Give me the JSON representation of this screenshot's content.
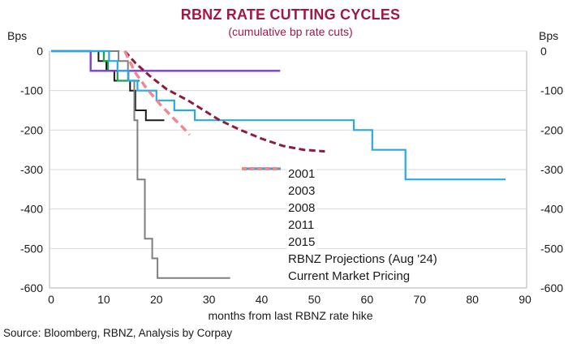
{
  "chart_data": {
    "type": "line",
    "title": "RBNZ RATE CUTTING CYCLES",
    "subtitle": "(cumulative bp rate cuts)",
    "title_color": "#A31748",
    "unit_label_left": "Bps",
    "unit_label_right": "Bps",
    "xlabel": "months from last RBNZ rate hike",
    "source": "Source: Bloomberg, RBNZ, Analysis by Corpay",
    "xlim": [
      0,
      90
    ],
    "ylim": [
      -600,
      0
    ],
    "x_ticks": [
      0,
      10,
      20,
      30,
      40,
      50,
      60,
      70,
      80,
      90
    ],
    "y_ticks": [
      0,
      -100,
      -200,
      -300,
      -400,
      -500,
      -600
    ],
    "grid": "horizontal",
    "legend_position": "inside-center-right",
    "grid_color": "#D9D9D9",
    "spine_color": "#BFBFBF",
    "series": [
      {
        "name": "2001",
        "color": "#1A1A1A",
        "width": 2,
        "dash": null,
        "points": [
          [
            0,
            0
          ],
          [
            9,
            0
          ],
          [
            9,
            -25
          ],
          [
            10.5,
            -25
          ],
          [
            10.5,
            -50
          ],
          [
            12,
            -50
          ],
          [
            12,
            -75
          ],
          [
            15,
            -75
          ],
          [
            15,
            -100
          ],
          [
            16,
            -100
          ],
          [
            16,
            -150
          ],
          [
            18,
            -150
          ],
          [
            18,
            -175
          ],
          [
            21.5,
            -175
          ]
        ]
      },
      {
        "name": "2003",
        "color": "#1BA64E",
        "width": 2.2,
        "dash": null,
        "points": [
          [
            0,
            0
          ],
          [
            10,
            0
          ],
          [
            10,
            -25
          ],
          [
            10.8,
            -25
          ],
          [
            10.8,
            -50
          ],
          [
            12.6,
            -50
          ],
          [
            12.6,
            -75
          ],
          [
            16.8,
            -75
          ]
        ]
      },
      {
        "name": "2008",
        "color": "#7F7F7F",
        "width": 2,
        "dash": null,
        "points": [
          [
            0,
            0
          ],
          [
            12.8,
            0
          ],
          [
            12.8,
            -25
          ],
          [
            14.6,
            -25
          ],
          [
            14.6,
            -75
          ],
          [
            15.8,
            -75
          ],
          [
            15.8,
            -175
          ],
          [
            16.4,
            -175
          ],
          [
            16.4,
            -325
          ],
          [
            17.8,
            -325
          ],
          [
            17.8,
            -475
          ],
          [
            19.2,
            -475
          ],
          [
            19.2,
            -525
          ],
          [
            20.2,
            -525
          ],
          [
            20.2,
            -575
          ],
          [
            34,
            -575
          ]
        ]
      },
      {
        "name": "2011",
        "color": "#7D42C3",
        "width": 2.4,
        "dash": null,
        "points": [
          [
            0,
            0
          ],
          [
            7.5,
            0
          ],
          [
            7.5,
            -50
          ],
          [
            43.5,
            -50
          ]
        ]
      },
      {
        "name": "2015",
        "color": "#29A9E2",
        "width": 2.2,
        "dash": null,
        "points": [
          [
            0,
            0
          ],
          [
            11,
            0
          ],
          [
            11,
            -25
          ],
          [
            12.6,
            -25
          ],
          [
            12.6,
            -50
          ],
          [
            14.7,
            -50
          ],
          [
            14.7,
            -75
          ],
          [
            16.4,
            -75
          ],
          [
            16.4,
            -100
          ],
          [
            20,
            -100
          ],
          [
            20,
            -125
          ],
          [
            23.4,
            -125
          ],
          [
            23.4,
            -150
          ],
          [
            27.3,
            -150
          ],
          [
            27.3,
            -175
          ],
          [
            57.5,
            -175
          ],
          [
            57.5,
            -200
          ],
          [
            61,
            -200
          ],
          [
            61,
            -250
          ],
          [
            67.3,
            -250
          ],
          [
            67.3,
            -325
          ],
          [
            86.3,
            -325
          ]
        ]
      },
      {
        "name": "RBNZ Projections (Aug '24)",
        "color": "#8E1C3D",
        "width": 3,
        "dash": "8 4.5",
        "points": [
          [
            14,
            0
          ],
          [
            16,
            -30
          ],
          [
            19,
            -66
          ],
          [
            22,
            -97
          ],
          [
            26,
            -125
          ],
          [
            29,
            -150
          ],
          [
            32,
            -175
          ],
          [
            36,
            -200
          ],
          [
            40,
            -222
          ],
          [
            44,
            -240
          ],
          [
            48,
            -250
          ],
          [
            52,
            -254
          ]
        ]
      },
      {
        "name": "Current Market Pricing",
        "color": "#F4858F",
        "width": 3.4,
        "dash": "9 5.5",
        "points": [
          [
            14,
            0
          ],
          [
            16,
            -55
          ],
          [
            18,
            -92
          ],
          [
            19,
            -108
          ],
          [
            20,
            -124
          ],
          [
            21,
            -140
          ],
          [
            22,
            -153
          ],
          [
            23,
            -167
          ],
          [
            24,
            -180
          ],
          [
            25,
            -193
          ],
          [
            26.3,
            -212
          ]
        ]
      }
    ]
  }
}
